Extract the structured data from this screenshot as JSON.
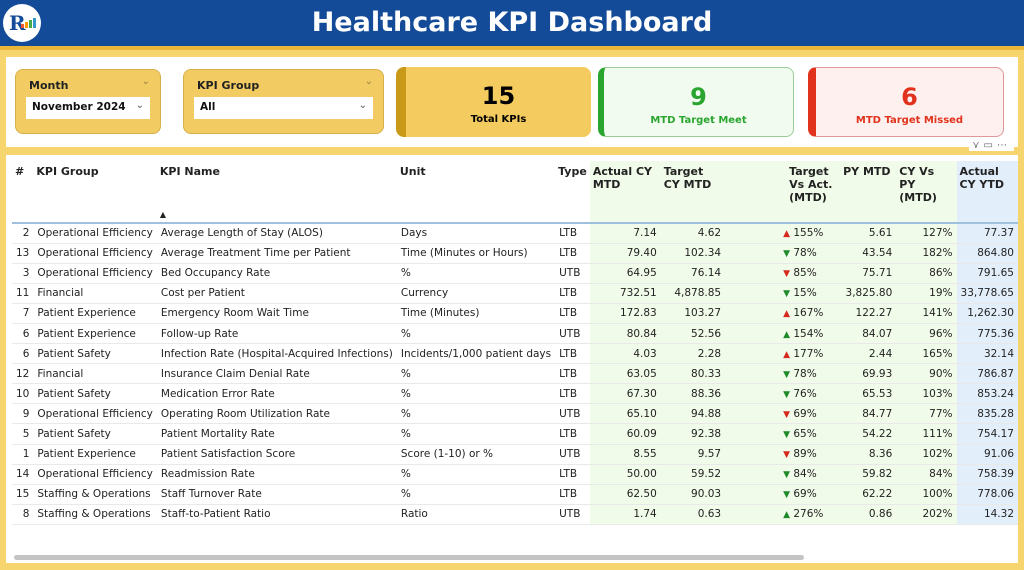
{
  "header": {
    "title": "Healthcare KPI Dashboard",
    "logo_text": "R"
  },
  "filters": {
    "month": {
      "label": "Month",
      "value": "November 2024"
    },
    "kpi_group": {
      "label": "KPI Group",
      "value": "All"
    }
  },
  "cards": {
    "total": {
      "value": "15",
      "label": "Total KPIs"
    },
    "meet": {
      "value": "9",
      "label": "MTD Target Meet",
      "color": "#2aa52f"
    },
    "missed": {
      "value": "6",
      "label": "MTD Target Missed",
      "color": "#e0321c"
    }
  },
  "table": {
    "headers": [
      "#",
      "KPI Group",
      "KPI Name",
      "Unit",
      "Type",
      "Actual CY MTD",
      "Target CY MTD",
      "Target Vs Act. (MTD)",
      "PY MTD",
      "CY Vs PY (MTD)",
      "Actual CY YTD"
    ],
    "rows": [
      {
        "n": "2",
        "group": "Operational Efficiency",
        "name": "Average Length of Stay (ALOS)",
        "unit": "Days",
        "type": "LTB",
        "act": "7.14",
        "tgt": "4.62",
        "arrow": "up",
        "arrow_color": "#d62a1e",
        "tva": "155%",
        "py": "5.61",
        "cyp": "127%",
        "ytd": "77.37"
      },
      {
        "n": "13",
        "group": "Operational Efficiency",
        "name": "Average Treatment Time per Patient",
        "unit": "Time (Minutes or Hours)",
        "type": "LTB",
        "act": "79.40",
        "tgt": "102.34",
        "arrow": "down",
        "arrow_color": "#1f8a2b",
        "tva": "78%",
        "py": "43.54",
        "cyp": "182%",
        "ytd": "864.80"
      },
      {
        "n": "3",
        "group": "Operational Efficiency",
        "name": "Bed Occupancy Rate",
        "unit": "%",
        "type": "UTB",
        "act": "64.95",
        "tgt": "76.14",
        "arrow": "down",
        "arrow_color": "#d62a1e",
        "tva": "85%",
        "py": "75.71",
        "cyp": "86%",
        "ytd": "791.65"
      },
      {
        "n": "11",
        "group": "Financial",
        "name": "Cost per Patient",
        "unit": "Currency",
        "type": "LTB",
        "act": "732.51",
        "tgt": "4,878.85",
        "arrow": "down",
        "arrow_color": "#1f8a2b",
        "tva": "15%",
        "py": "3,825.80",
        "cyp": "19%",
        "ytd": "33,778.65"
      },
      {
        "n": "7",
        "group": "Patient Experience",
        "name": "Emergency Room Wait Time",
        "unit": "Time (Minutes)",
        "type": "LTB",
        "act": "172.83",
        "tgt": "103.27",
        "arrow": "up",
        "arrow_color": "#d62a1e",
        "tva": "167%",
        "py": "122.27",
        "cyp": "141%",
        "ytd": "1,262.30"
      },
      {
        "n": "6",
        "group": "Patient Experience",
        "name": "Follow-up Rate",
        "unit": "%",
        "type": "UTB",
        "act": "80.84",
        "tgt": "52.56",
        "arrow": "up",
        "arrow_color": "#1f8a2b",
        "tva": "154%",
        "py": "84.07",
        "cyp": "96%",
        "ytd": "775.36"
      },
      {
        "n": "6",
        "group": "Patient Safety",
        "name": "Infection Rate (Hospital-Acquired Infections)",
        "unit": "Incidents/1,000 patient days",
        "type": "LTB",
        "act": "4.03",
        "tgt": "2.28",
        "arrow": "up",
        "arrow_color": "#d62a1e",
        "tva": "177%",
        "py": "2.44",
        "cyp": "165%",
        "ytd": "32.14"
      },
      {
        "n": "12",
        "group": "Financial",
        "name": "Insurance Claim Denial Rate",
        "unit": "%",
        "type": "LTB",
        "act": "63.05",
        "tgt": "80.33",
        "arrow": "down",
        "arrow_color": "#1f8a2b",
        "tva": "78%",
        "py": "69.93",
        "cyp": "90%",
        "ytd": "786.87"
      },
      {
        "n": "10",
        "group": "Patient Safety",
        "name": "Medication Error Rate",
        "unit": "%",
        "type": "LTB",
        "act": "67.30",
        "tgt": "88.36",
        "arrow": "down",
        "arrow_color": "#1f8a2b",
        "tva": "76%",
        "py": "65.53",
        "cyp": "103%",
        "ytd": "853.24"
      },
      {
        "n": "9",
        "group": "Operational Efficiency",
        "name": "Operating Room Utilization Rate",
        "unit": "%",
        "type": "UTB",
        "act": "65.10",
        "tgt": "94.88",
        "arrow": "down",
        "arrow_color": "#d62a1e",
        "tva": "69%",
        "py": "84.77",
        "cyp": "77%",
        "ytd": "835.28"
      },
      {
        "n": "5",
        "group": "Patient Safety",
        "name": "Patient Mortality Rate",
        "unit": "%",
        "type": "LTB",
        "act": "60.09",
        "tgt": "92.38",
        "arrow": "down",
        "arrow_color": "#1f8a2b",
        "tva": "65%",
        "py": "54.22",
        "cyp": "111%",
        "ytd": "754.17"
      },
      {
        "n": "1",
        "group": "Patient Experience",
        "name": "Patient Satisfaction Score",
        "unit": "Score (1-10) or %",
        "type": "UTB",
        "act": "8.55",
        "tgt": "9.57",
        "arrow": "down",
        "arrow_color": "#d62a1e",
        "tva": "89%",
        "py": "8.36",
        "cyp": "102%",
        "ytd": "91.06"
      },
      {
        "n": "14",
        "group": "Operational Efficiency",
        "name": "Readmission Rate",
        "unit": "%",
        "type": "LTB",
        "act": "50.00",
        "tgt": "59.52",
        "arrow": "down",
        "arrow_color": "#1f8a2b",
        "tva": "84%",
        "py": "59.82",
        "cyp": "84%",
        "ytd": "758.39"
      },
      {
        "n": "15",
        "group": "Staffing & Operations",
        "name": "Staff Turnover Rate",
        "unit": "%",
        "type": "LTB",
        "act": "62.50",
        "tgt": "90.03",
        "arrow": "down",
        "arrow_color": "#1f8a2b",
        "tva": "69%",
        "py": "62.22",
        "cyp": "100%",
        "ytd": "778.06"
      },
      {
        "n": "8",
        "group": "Staffing & Operations",
        "name": "Staff-to-Patient Ratio",
        "unit": "Ratio",
        "type": "UTB",
        "act": "1.74",
        "tgt": "0.63",
        "arrow": "up",
        "arrow_color": "#1f8a2b",
        "tva": "276%",
        "py": "0.86",
        "cyp": "202%",
        "ytd": "14.32"
      }
    ]
  }
}
